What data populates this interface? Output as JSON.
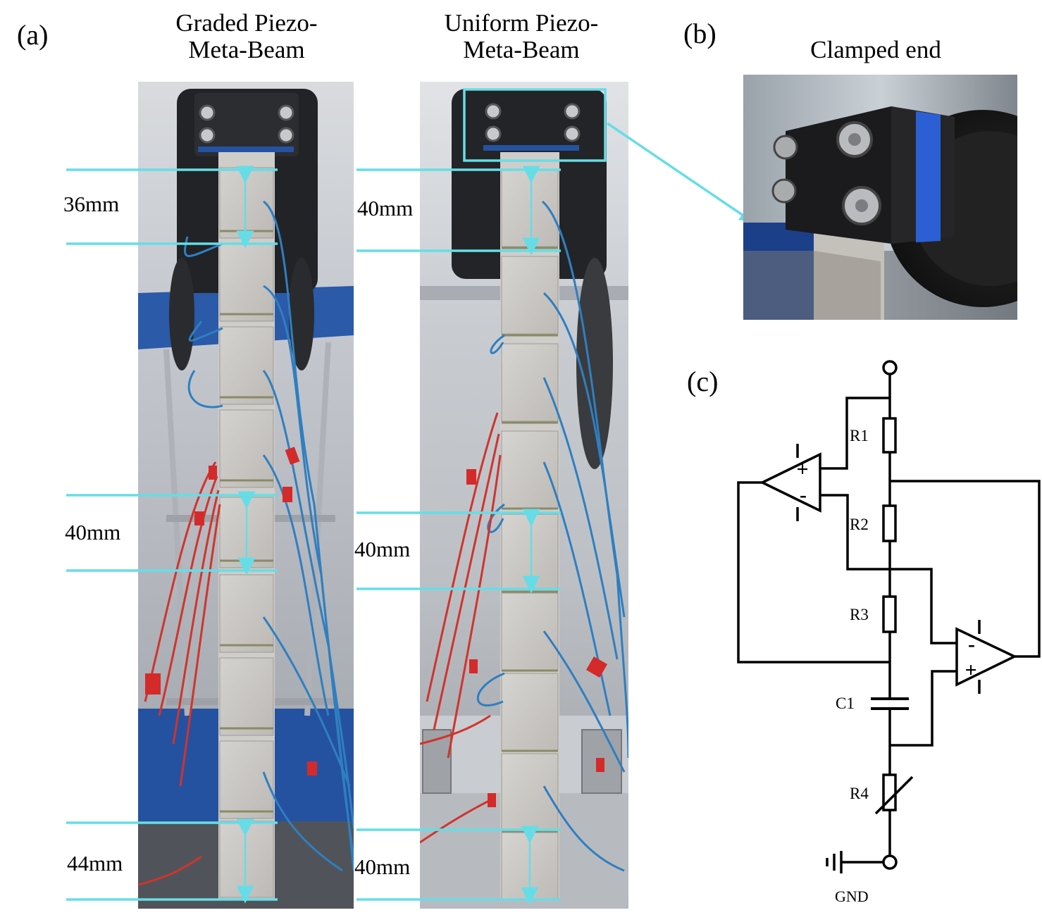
{
  "panels": {
    "a": {
      "label": "(a)",
      "graded": {
        "title_line1": "Graded Piezo-",
        "title_line2": "Meta-Beam"
      },
      "uniform": {
        "title_line1": "Uniform Piezo-",
        "title_line2": "Meta-Beam"
      },
      "dimensions_graded": [
        "36mm",
        "40mm",
        "44mm"
      ],
      "dimensions_uniform": [
        "40mm",
        "40mm",
        "40mm"
      ]
    },
    "b": {
      "label": "(b)",
      "title": "Clamped end"
    },
    "c": {
      "label": "(c)",
      "components": {
        "r1": "R1",
        "r2": "R2",
        "r3": "R3",
        "c1": "C1",
        "r4": "R4",
        "gnd": "GND"
      },
      "opamp_signs": {
        "plus": "+",
        "minus": "-"
      }
    }
  },
  "colors": {
    "annotation_line": "#66dde6",
    "wire_red": "#d0342c",
    "wire_blue": "#2f7fc0",
    "stand_blue": "#1f4fa0"
  }
}
